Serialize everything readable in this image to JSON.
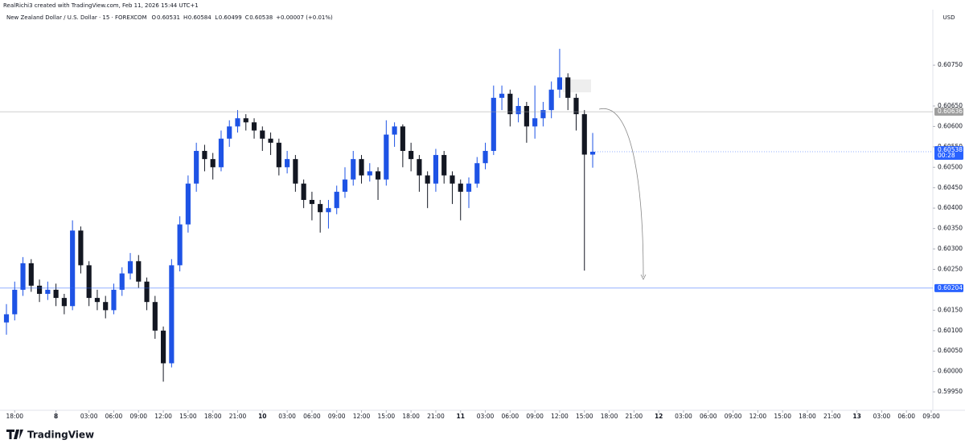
{
  "header": {
    "credit": "RealRichi3 created with TradingView.com, Feb 11, 2026 15:44 UTC+1",
    "symbol": "New Zealand Dollar / U.S. Dollar · 15 · FOREXCOM",
    "ohlc": [
      {
        "label": "O",
        "value": "0.60531"
      },
      {
        "label": "H",
        "value": "0.60584"
      },
      {
        "label": "L",
        "value": "0.60499"
      },
      {
        "label": "C",
        "value": "0.60538"
      }
    ],
    "change": "+0.00007 (+0.01%)"
  },
  "footer": {
    "logo": "TradingView"
  },
  "chart_data": {
    "type": "candlestick",
    "currency": "USD",
    "up_color": "#1e53e5",
    "down_color": "#131722",
    "x": [
      0,
      1,
      2,
      3,
      4,
      5,
      6,
      7,
      8,
      9,
      10,
      11,
      12,
      13,
      14,
      15,
      16,
      17,
      18,
      19,
      20,
      21,
      22,
      23,
      24,
      25,
      26,
      27,
      28,
      29,
      30,
      31,
      32,
      33,
      34,
      35,
      36,
      37,
      38,
      39,
      40,
      41,
      42,
      43,
      44,
      45,
      46,
      47,
      48,
      49,
      50,
      51,
      52,
      53,
      54,
      55,
      56,
      57,
      58,
      59,
      60,
      61,
      62,
      63,
      64,
      65,
      66,
      67,
      68,
      69,
      70,
      71
    ],
    "open": [
      0.6012,
      0.6014,
      0.602,
      0.60265,
      0.6021,
      0.6019,
      0.602,
      0.6018,
      0.6016,
      0.60345,
      0.6026,
      0.6018,
      0.6017,
      0.6015,
      0.602,
      0.6024,
      0.6027,
      0.6022,
      0.6017,
      0.601,
      0.6002,
      0.6026,
      0.6036,
      0.6046,
      0.6054,
      0.6052,
      0.605,
      0.6057,
      0.606,
      0.6062,
      0.6061,
      0.6059,
      0.6057,
      0.6056,
      0.605,
      0.6052,
      0.6046,
      0.6042,
      0.6041,
      0.6039,
      0.604,
      0.6044,
      0.6047,
      0.6052,
      0.6048,
      0.6049,
      0.6047,
      0.6058,
      0.606,
      0.6054,
      0.6052,
      0.6048,
      0.6046,
      0.6053,
      0.6048,
      0.6046,
      0.6044,
      0.6046,
      0.6051,
      0.6054,
      0.6067,
      0.6068,
      0.6063,
      0.6065,
      0.606,
      0.6062,
      0.6064,
      0.6069,
      0.6072,
      0.6067,
      0.6063,
      0.60531
    ],
    "high": [
      0.60165,
      0.6022,
      0.6028,
      0.60275,
      0.60225,
      0.6022,
      0.60215,
      0.6019,
      0.6037,
      0.60355,
      0.6027,
      0.602,
      0.60185,
      0.60215,
      0.60255,
      0.6029,
      0.60285,
      0.6023,
      0.60185,
      0.6011,
      0.60275,
      0.6038,
      0.6048,
      0.6056,
      0.60555,
      0.60535,
      0.6059,
      0.60615,
      0.6064,
      0.6063,
      0.6062,
      0.606,
      0.60585,
      0.6057,
      0.6054,
      0.6053,
      0.6047,
      0.6044,
      0.6042,
      0.6042,
      0.60455,
      0.605,
      0.6054,
      0.6053,
      0.6051,
      0.605,
      0.60615,
      0.6061,
      0.60605,
      0.6056,
      0.6053,
      0.6049,
      0.60545,
      0.6054,
      0.6049,
      0.6047,
      0.60475,
      0.60525,
      0.6056,
      0.607,
      0.607,
      0.6069,
      0.6067,
      0.6066,
      0.607,
      0.6066,
      0.6071,
      0.6079,
      0.6073,
      0.6068,
      0.6064,
      0.60584
    ],
    "low": [
      0.6009,
      0.60125,
      0.60185,
      0.60195,
      0.6017,
      0.60175,
      0.6016,
      0.6014,
      0.6015,
      0.6024,
      0.6016,
      0.6015,
      0.6013,
      0.6014,
      0.60185,
      0.60225,
      0.60205,
      0.6015,
      0.6008,
      0.59975,
      0.6001,
      0.60245,
      0.6034,
      0.6044,
      0.6049,
      0.6047,
      0.6049,
      0.6055,
      0.60585,
      0.6059,
      0.6057,
      0.6054,
      0.6053,
      0.6048,
      0.60485,
      0.6044,
      0.604,
      0.6037,
      0.6034,
      0.6035,
      0.60385,
      0.60425,
      0.60455,
      0.6046,
      0.60465,
      0.6042,
      0.60455,
      0.6055,
      0.605,
      0.6049,
      0.6044,
      0.604,
      0.6044,
      0.6046,
      0.6041,
      0.6037,
      0.604,
      0.6045,
      0.60495,
      0.6053,
      0.6064,
      0.606,
      0.6061,
      0.6056,
      0.6057,
      0.606,
      0.6062,
      0.6067,
      0.6064,
      0.6059,
      0.60247,
      0.60499
    ],
    "close": [
      0.6014,
      0.602,
      0.60265,
      0.6021,
      0.6019,
      0.602,
      0.6018,
      0.6016,
      0.60345,
      0.6026,
      0.6018,
      0.6017,
      0.6015,
      0.602,
      0.6024,
      0.6027,
      0.6022,
      0.6017,
      0.601,
      0.6002,
      0.6026,
      0.6036,
      0.6046,
      0.6054,
      0.6052,
      0.605,
      0.6057,
      0.606,
      0.6062,
      0.6061,
      0.6059,
      0.6057,
      0.6056,
      0.605,
      0.6052,
      0.6046,
      0.6042,
      0.6041,
      0.6039,
      0.604,
      0.6044,
      0.6047,
      0.6052,
      0.6048,
      0.6049,
      0.6047,
      0.6058,
      0.606,
      0.6054,
      0.6052,
      0.6048,
      0.6046,
      0.6053,
      0.6048,
      0.6046,
      0.6044,
      0.6046,
      0.6051,
      0.6054,
      0.6067,
      0.6068,
      0.6063,
      0.6065,
      0.606,
      0.6062,
      0.6064,
      0.6069,
      0.6072,
      0.6067,
      0.6063,
      0.60531,
      0.60538
    ],
    "xlim": [
      0,
      112
    ],
    "xticks": [
      {
        "value": 1,
        "label": "18:00"
      },
      {
        "value": 6,
        "label": "8"
      },
      {
        "value": 10,
        "label": "03:00"
      },
      {
        "value": 13,
        "label": "06:00"
      },
      {
        "value": 16,
        "label": "09:00"
      },
      {
        "value": 19,
        "label": "12:00"
      },
      {
        "value": 22,
        "label": "15:00"
      },
      {
        "value": 25,
        "label": "18:00"
      },
      {
        "value": 28,
        "label": "21:00"
      },
      {
        "value": 31,
        "label": "10"
      },
      {
        "value": 34,
        "label": "03:00"
      },
      {
        "value": 37,
        "label": "06:00"
      },
      {
        "value": 40,
        "label": "09:00"
      },
      {
        "value": 43,
        "label": "12:00"
      },
      {
        "value": 46,
        "label": "15:00"
      },
      {
        "value": 49,
        "label": "18:00"
      },
      {
        "value": 52,
        "label": "21:00"
      },
      {
        "value": 55,
        "label": "11"
      },
      {
        "value": 58,
        "label": "03:00"
      },
      {
        "value": 61,
        "label": "06:00"
      },
      {
        "value": 64,
        "label": "09:00"
      },
      {
        "value": 67,
        "label": "12:00"
      },
      {
        "value": 70,
        "label": "15:00"
      },
      {
        "value": 73,
        "label": "18:00"
      },
      {
        "value": 76,
        "label": "21:00"
      },
      {
        "value": 79,
        "label": "12"
      },
      {
        "value": 82,
        "label": "03:00"
      },
      {
        "value": 85,
        "label": "06:00"
      },
      {
        "value": 88,
        "label": "09:00"
      },
      {
        "value": 91,
        "label": "12:00"
      },
      {
        "value": 94,
        "label": "15:00"
      },
      {
        "value": 97,
        "label": "18:00"
      },
      {
        "value": 100,
        "label": "21:00"
      },
      {
        "value": 103,
        "label": "13"
      },
      {
        "value": 106,
        "label": "03:00"
      },
      {
        "value": 109,
        "label": "06:00"
      },
      {
        "value": 112,
        "label": "09:00"
      }
    ],
    "ylim": [
      0.59903,
      0.60882
    ],
    "yticks": [
      {
        "value": 0.5995,
        "label": "0.59950"
      },
      {
        "value": 0.6,
        "label": "0.60000"
      },
      {
        "value": 0.6005,
        "label": "0.60050"
      },
      {
        "value": 0.601,
        "label": "0.60100"
      },
      {
        "value": 0.6015,
        "label": "0.60150"
      },
      {
        "value": 0.6025,
        "label": "0.60250"
      },
      {
        "value": 0.603,
        "label": "0.60300"
      },
      {
        "value": 0.6035,
        "label": "0.60350"
      },
      {
        "value": 0.604,
        "label": "0.60400"
      },
      {
        "value": 0.6045,
        "label": "0.60450"
      },
      {
        "value": 0.605,
        "label": "0.60500"
      },
      {
        "value": 0.6055,
        "label": "0.60550"
      },
      {
        "value": 0.606,
        "label": "0.60600"
      },
      {
        "value": 0.6065,
        "label": "0.60650"
      },
      {
        "value": 0.6075,
        "label": "0.60750"
      }
    ],
    "levels": [
      {
        "value": 0.60636,
        "label": "0.60636",
        "color": "#9e9e9e"
      },
      {
        "value": 0.60204,
        "label": "0.60204",
        "color": "#2962ff"
      }
    ],
    "current_price": {
      "value": 0.60538,
      "label": "0.60538",
      "countdown": "00:28",
      "color": "#2962ff"
    }
  }
}
